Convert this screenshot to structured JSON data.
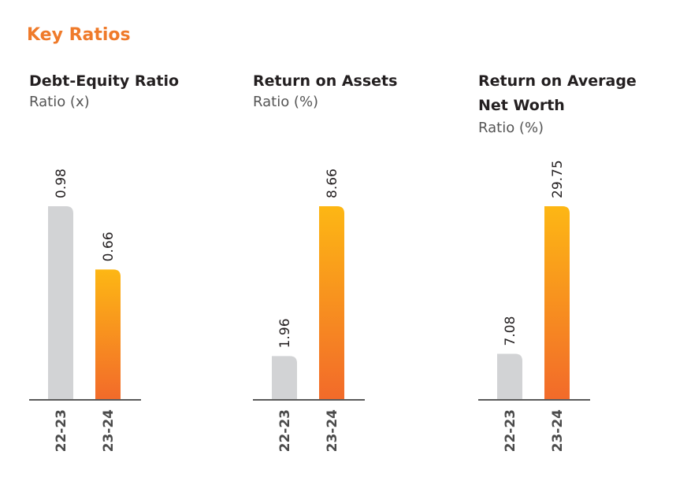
{
  "page": {
    "title": "Key Ratios"
  },
  "colors": {
    "title": "#ef7a2a",
    "bar_prev": "#d2d3d5",
    "bar_curr_top": "#fdb714",
    "bar_curr_bottom": "#f26a2a",
    "axis": "#5a5a5a"
  },
  "chart_data": [
    {
      "type": "bar",
      "title": "Debt-Equity Ratio",
      "subtitle": "Ratio (x)",
      "categories": [
        "22-23",
        "23-24"
      ],
      "values": [
        0.98,
        0.66
      ],
      "value_labels": [
        "0.98",
        "0.66"
      ]
    },
    {
      "type": "bar",
      "title": "Return on Assets",
      "subtitle": "Ratio (%)",
      "categories": [
        "22-23",
        "23-24"
      ],
      "values": [
        1.96,
        8.66
      ],
      "value_labels": [
        "1.96",
        "8.66"
      ]
    },
    {
      "type": "bar",
      "title": "Return on Average Net Worth",
      "subtitle": "Ratio (%)",
      "categories": [
        "22-23",
        "23-24"
      ],
      "values": [
        7.08,
        29.75
      ],
      "value_labels": [
        "7.08",
        "29.75"
      ]
    }
  ]
}
